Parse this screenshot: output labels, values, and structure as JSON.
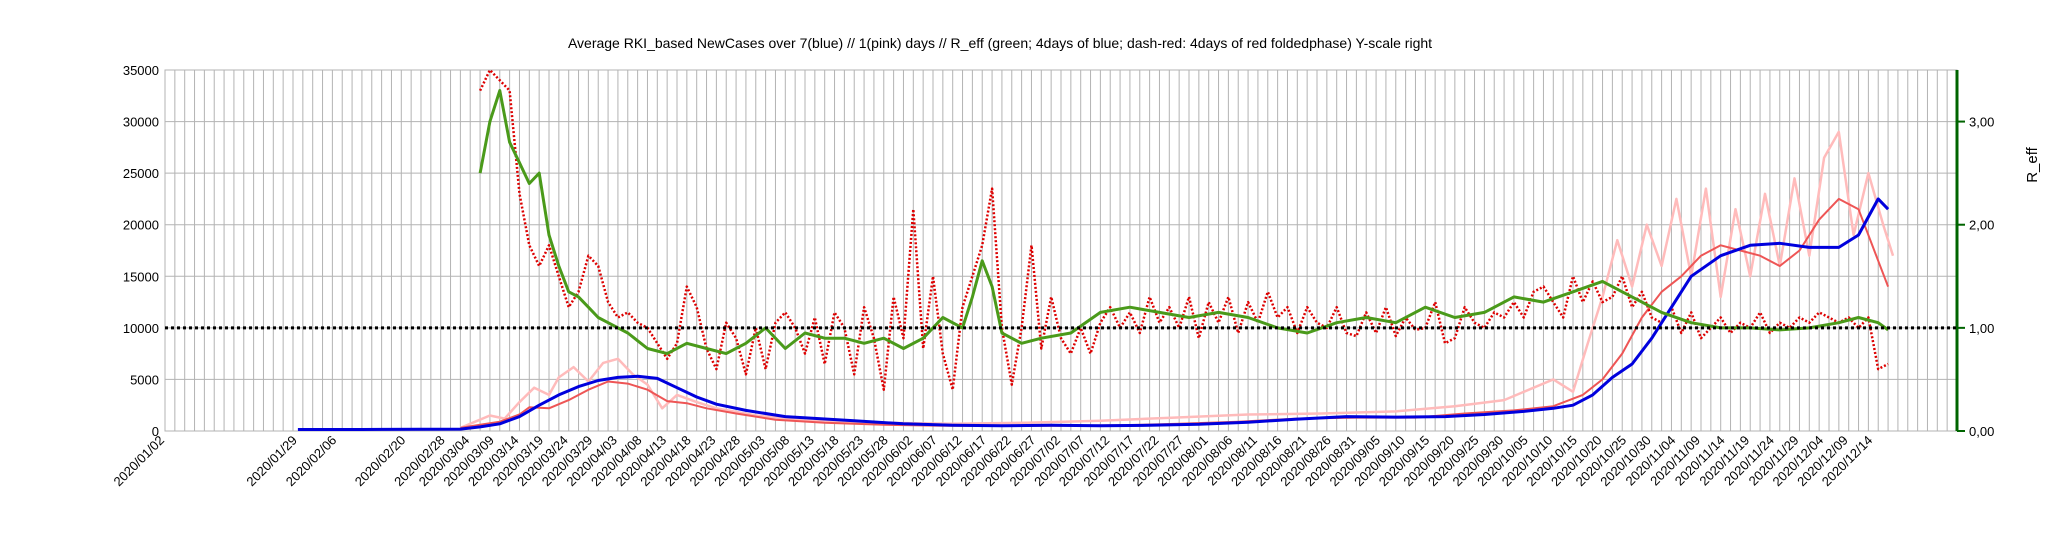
{
  "chart_data": {
    "type": "line",
    "title": "Average RKI_based NewCases over 7(blue) // 1(pink) days //  R_eff (green; 4days of blue; dash-red: 4days of red foldedphase) Y-scale right",
    "ylabel_right": "R_eff",
    "ylim": [
      0,
      35000
    ],
    "y2lim": [
      0,
      3.5
    ],
    "yticks": [
      "0",
      "5000",
      "10000",
      "15000",
      "20000",
      "25000",
      "30000",
      "35000"
    ],
    "y2ticks": [
      "0,00",
      "1,00",
      "2,00",
      "3,00"
    ],
    "y2tick_values": [
      0,
      1,
      2,
      3
    ],
    "grid": true,
    "reference_line": 1.0,
    "x_labels": [
      "2020/01/02",
      "2020/01/29",
      "2020/02/06",
      "2020/02/20",
      "2020/02/28",
      "2020/03/04",
      "2020/03/09",
      "2020/03/14",
      "2020/03/19",
      "2020/03/24",
      "2020/03/29",
      "2020/04/03",
      "2020/04/08",
      "2020/04/13",
      "2020/04/18",
      "2020/04/23",
      "2020/04/28",
      "2020/05/03",
      "2020/05/08",
      "2020/05/13",
      "2020/05/18",
      "2020/05/23",
      "2020/05/28",
      "2020/06/02",
      "2020/06/07",
      "2020/06/12",
      "2020/06/17",
      "2020/06/22",
      "2020/06/27",
      "2020/07/02",
      "2020/07/07",
      "2020/07/12",
      "2020/07/17",
      "2020/07/22",
      "2020/07/27",
      "2020/08/01",
      "2020/08/06",
      "2020/08/11",
      "2020/08/16",
      "2020/08/21",
      "2020/08/26",
      "2020/08/31",
      "2020/09/05",
      "2020/09/10",
      "2020/09/15",
      "2020/09/20",
      "2020/09/25",
      "2020/09/30",
      "2020/10/05",
      "2020/10/10",
      "2020/10/15",
      "2020/10/20",
      "2020/10/25",
      "2020/10/30",
      "2020/11/04",
      "2020/11/09",
      "2020/11/14",
      "2020/11/19",
      "2020/11/24",
      "2020/11/29",
      "2020/12/04",
      "2020/12/09",
      "2020/12/14"
    ],
    "x_label_days": [
      0,
      27,
      35,
      49,
      57,
      62,
      67,
      72,
      77,
      82,
      87,
      92,
      97,
      102,
      107,
      112,
      117,
      122,
      127,
      132,
      137,
      142,
      147,
      152,
      157,
      162,
      167,
      172,
      177,
      182,
      187,
      192,
      197,
      202,
      207,
      212,
      217,
      222,
      227,
      232,
      237,
      242,
      247,
      252,
      257,
      262,
      267,
      272,
      277,
      282,
      287,
      292,
      297,
      302,
      307,
      312,
      317,
      322,
      327,
      332,
      337,
      342,
      347
    ],
    "series": [
      {
        "color": "#0000dd",
        "axis": "left",
        "style": "solid",
        "days": [
          27,
          40,
          60,
          64,
          68,
          72,
          76,
          80,
          84,
          88,
          92,
          96,
          100,
          104,
          108,
          112,
          118,
          126,
          140,
          150,
          160,
          170,
          180,
          190,
          200,
          210,
          220,
          230,
          240,
          250,
          260,
          268,
          276,
          282,
          286,
          290,
          294,
          298,
          302,
          306,
          310,
          316,
          322,
          328,
          334,
          340,
          344,
          348,
          350
        ],
        "values": [
          150,
          150,
          180,
          400,
          700,
          1400,
          2500,
          3500,
          4300,
          4900,
          5200,
          5300,
          5100,
          4200,
          3300,
          2600,
          2000,
          1400,
          1000,
          700,
          550,
          500,
          550,
          500,
          550,
          650,
          850,
          1150,
          1400,
          1350,
          1400,
          1600,
          1900,
          2200,
          2500,
          3500,
          5200,
          6500,
          9000,
          12000,
          15000,
          17000,
          18000,
          18200,
          17800,
          17800,
          19000,
          22500,
          21500
        ]
      },
      {
        "color": "#ee5555",
        "axis": "left",
        "style": "solid",
        "days": [
          60,
          64,
          68,
          72,
          74,
          78,
          82,
          86,
          90,
          94,
          98,
          102,
          106,
          110,
          116,
          124,
          134,
          146,
          158,
          170,
          182,
          194,
          206,
          218,
          230,
          242,
          254,
          264,
          274,
          282,
          288,
          292,
          296,
          300,
          304,
          308,
          312,
          316,
          320,
          324,
          328,
          332,
          336,
          340,
          344,
          348,
          350
        ],
        "values": [
          300,
          600,
          900,
          1600,
          2300,
          2200,
          3000,
          4000,
          4800,
          4600,
          4000,
          2900,
          2700,
          2200,
          1700,
          1100,
          800,
          600,
          500,
          500,
          500,
          550,
          700,
          900,
          1200,
          1300,
          1300,
          1700,
          2000,
          2400,
          3500,
          5000,
          7500,
          11000,
          13500,
          15000,
          17000,
          18000,
          17500,
          17000,
          16000,
          17500,
          20500,
          22500,
          21500,
          16500,
          14000
        ]
      },
      {
        "color": "#ffbbbb",
        "axis": "left",
        "style": "solid",
        "days": [
          60,
          63,
          66,
          69,
          72,
          75,
          78,
          80,
          83,
          86,
          89,
          92,
          95,
          98,
          101,
          104,
          108,
          112,
          120,
          130,
          145,
          160,
          175,
          190,
          205,
          220,
          235,
          250,
          262,
          272,
          282,
          286,
          289,
          292,
          295,
          298,
          301,
          304,
          307,
          310,
          313,
          316,
          319,
          322,
          325,
          328,
          331,
          334,
          337,
          340,
          343,
          346,
          349,
          351
        ],
        "values": [
          300,
          900,
          1500,
          1200,
          2800,
          4200,
          3500,
          5200,
          6200,
          4800,
          6600,
          7000,
          5500,
          4500,
          2200,
          3500,
          2800,
          2200,
          1500,
          1000,
          800,
          700,
          800,
          1000,
          1300,
          1600,
          1700,
          1900,
          2400,
          3000,
          5000,
          3800,
          8500,
          13000,
          18500,
          14000,
          20000,
          16000,
          22500,
          15000,
          23500,
          13000,
          21500,
          15000,
          23000,
          16000,
          24500,
          17000,
          26500,
          29000,
          19000,
          25000,
          20000,
          17000
        ]
      },
      {
        "color": "#4a9a1a",
        "axis": "right",
        "style": "solid",
        "days": [
          64,
          66,
          68,
          70,
          72,
          74,
          76,
          78,
          80,
          82,
          84,
          86,
          88,
          90,
          94,
          98,
          102,
          106,
          110,
          114,
          118,
          122,
          126,
          130,
          134,
          138,
          142,
          146,
          150,
          154,
          158,
          162,
          164,
          166,
          168,
          170,
          174,
          178,
          184,
          190,
          196,
          202,
          208,
          214,
          220,
          226,
          232,
          238,
          244,
          250,
          256,
          262,
          268,
          274,
          280,
          286,
          292,
          296,
          300,
          304,
          310,
          316,
          322,
          328,
          334,
          340,
          344,
          348,
          350
        ],
        "values": [
          2.5,
          3.0,
          3.3,
          2.8,
          2.6,
          2.4,
          2.5,
          1.9,
          1.6,
          1.35,
          1.3,
          1.2,
          1.1,
          1.05,
          0.95,
          0.8,
          0.75,
          0.85,
          0.8,
          0.75,
          0.85,
          1.0,
          0.8,
          0.95,
          0.9,
          0.9,
          0.85,
          0.9,
          0.8,
          0.9,
          1.1,
          1.0,
          1.3,
          1.65,
          1.4,
          0.95,
          0.85,
          0.9,
          0.95,
          1.15,
          1.2,
          1.15,
          1.1,
          1.15,
          1.1,
          1.0,
          0.95,
          1.05,
          1.1,
          1.05,
          1.2,
          1.1,
          1.15,
          1.3,
          1.25,
          1.35,
          1.45,
          1.35,
          1.25,
          1.15,
          1.05,
          1.0,
          1.0,
          0.98,
          1.0,
          1.05,
          1.1,
          1.05,
          0.98
        ]
      },
      {
        "color": "#dd0000",
        "axis": "right",
        "style": "dotted",
        "days": [
          64,
          66,
          68,
          70,
          72,
          74,
          76,
          78,
          80,
          82,
          84,
          86,
          88,
          90,
          92,
          94,
          96,
          98,
          100,
          102,
          104,
          106,
          108,
          110,
          112,
          114,
          116,
          118,
          120,
          122,
          124,
          126,
          128,
          130,
          132,
          134,
          136,
          138,
          140,
          142,
          144,
          146,
          148,
          150,
          152,
          154,
          156,
          158,
          160,
          162,
          164,
          166,
          168,
          170,
          172,
          174,
          176,
          178,
          180,
          182,
          184,
          186,
          188,
          190,
          192,
          194,
          196,
          198,
          200,
          202,
          204,
          206,
          208,
          210,
          212,
          214,
          216,
          218,
          220,
          222,
          224,
          226,
          228,
          230,
          232,
          234,
          236,
          238,
          240,
          242,
          244,
          246,
          248,
          250,
          252,
          254,
          256,
          258,
          260,
          262,
          264,
          266,
          268,
          270,
          272,
          274,
          276,
          278,
          280,
          282,
          284,
          286,
          288,
          290,
          292,
          294,
          296,
          298,
          300,
          302,
          304,
          306,
          308,
          310,
          312,
          314,
          316,
          318,
          320,
          322,
          324,
          326,
          328,
          330,
          332,
          334,
          336,
          338,
          340,
          342,
          344,
          346,
          348,
          350
        ],
        "values": [
          3.3,
          3.5,
          3.4,
          3.3,
          2.3,
          1.8,
          1.6,
          1.8,
          1.5,
          1.2,
          1.35,
          1.7,
          1.6,
          1.25,
          1.1,
          1.15,
          1.05,
          1.0,
          0.85,
          0.7,
          0.85,
          1.4,
          1.2,
          0.8,
          0.6,
          1.05,
          0.9,
          0.55,
          1.0,
          0.6,
          1.05,
          1.15,
          1.0,
          0.75,
          1.1,
          0.65,
          1.15,
          1.0,
          0.55,
          1.2,
          0.9,
          0.4,
          1.3,
          0.9,
          2.15,
          0.8,
          1.5,
          0.75,
          0.4,
          1.2,
          1.5,
          1.8,
          2.35,
          1.0,
          0.45,
          1.0,
          1.8,
          0.8,
          1.3,
          0.9,
          0.75,
          1.0,
          0.75,
          1.05,
          1.2,
          1.0,
          1.15,
          0.95,
          1.3,
          1.05,
          1.2,
          1.0,
          1.3,
          0.9,
          1.25,
          1.05,
          1.3,
          0.95,
          1.25,
          1.05,
          1.35,
          1.1,
          1.2,
          0.95,
          1.2,
          1.05,
          1.0,
          1.2,
          0.95,
          0.92,
          1.15,
          0.95,
          1.2,
          0.92,
          1.1,
          0.98,
          1.0,
          1.25,
          0.85,
          0.9,
          1.2,
          1.05,
          1.0,
          1.15,
          1.1,
          1.25,
          1.1,
          1.35,
          1.4,
          1.25,
          1.1,
          1.5,
          1.25,
          1.45,
          1.25,
          1.3,
          1.5,
          1.2,
          1.35,
          1.1,
          1.05,
          1.2,
          0.95,
          1.15,
          0.9,
          1.0,
          1.1,
          0.95,
          1.05,
          1.0,
          1.15,
          0.95,
          1.05,
          1.0,
          1.1,
          1.05,
          1.15,
          1.1,
          1.05,
          1.1,
          1.0,
          1.1,
          0.6,
          0.65
        ]
      }
    ]
  }
}
